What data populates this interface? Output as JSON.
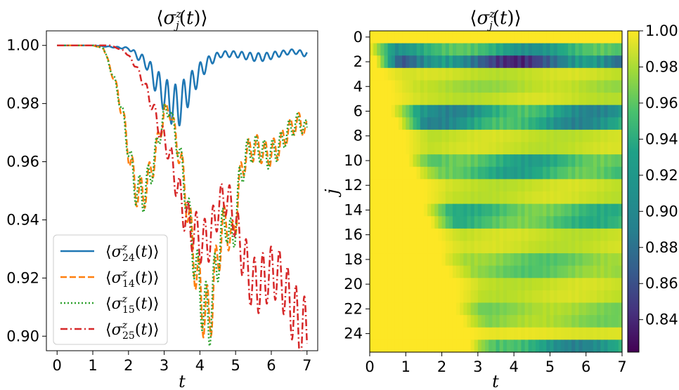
{
  "chart_data": [
    {
      "type": "line",
      "title": "⟨σⱼᶻ(t)⟩",
      "xlabel": "t",
      "ylabel": "",
      "xlim": [
        -0.3,
        7.3
      ],
      "ylim": [
        0.895,
        1.005
      ],
      "xticks": [
        "0",
        "1",
        "2",
        "3",
        "4",
        "5",
        "6",
        "7"
      ],
      "yticks": [
        "0.90",
        "0.92",
        "0.94",
        "0.96",
        "0.98",
        "1.00"
      ],
      "legend_placement": "lower-left",
      "series": [
        {
          "name": "⟨σ₂₄ᶻ(t)⟩",
          "color": "#1f77b4",
          "style": "solid",
          "points": [
            [
              0,
              1.0
            ],
            [
              1.0,
              1.0
            ],
            [
              2.0,
              0.999
            ],
            [
              2.5,
              0.994
            ],
            [
              2.8,
              0.987
            ],
            [
              3.0,
              0.983
            ],
            [
              3.2,
              0.98
            ],
            [
              3.4,
              0.979
            ],
            [
              3.6,
              0.983
            ],
            [
              3.8,
              0.987
            ],
            [
              4.0,
              0.991
            ],
            [
              4.3,
              0.995
            ],
            [
              4.6,
              0.997
            ],
            [
              5.0,
              0.997
            ],
            [
              5.5,
              0.996
            ],
            [
              5.8,
              0.996
            ],
            [
              6.2,
              0.997
            ],
            [
              6.6,
              0.998
            ],
            [
              7.0,
              0.997
            ]
          ]
        },
        {
          "name": "⟨σ₁₄ᶻ(t)⟩",
          "color": "#ff7f0e",
          "style": "dashed",
          "points": [
            [
              0,
              1.0
            ],
            [
              1.0,
              1.0
            ],
            [
              1.3,
              0.999
            ],
            [
              1.5,
              0.992
            ],
            [
              1.7,
              0.984
            ],
            [
              1.9,
              0.972
            ],
            [
              2.05,
              0.96
            ],
            [
              2.2,
              0.951
            ],
            [
              2.4,
              0.948
            ],
            [
              2.6,
              0.955
            ],
            [
              2.8,
              0.965
            ],
            [
              3.0,
              0.977
            ],
            [
              3.15,
              0.978
            ],
            [
              3.3,
              0.97
            ],
            [
              3.5,
              0.958
            ],
            [
              3.7,
              0.94
            ],
            [
              3.9,
              0.922
            ],
            [
              4.1,
              0.91
            ],
            [
              4.25,
              0.905
            ],
            [
              4.4,
              0.918
            ],
            [
              4.6,
              0.935
            ],
            [
              4.75,
              0.94
            ],
            [
              4.9,
              0.93
            ],
            [
              5.1,
              0.952
            ],
            [
              5.3,
              0.963
            ],
            [
              5.6,
              0.965
            ],
            [
              5.9,
              0.962
            ],
            [
              6.2,
              0.965
            ],
            [
              6.5,
              0.971
            ],
            [
              6.8,
              0.974
            ],
            [
              7.0,
              0.97
            ]
          ]
        },
        {
          "name": "⟨σ₁₅ᶻ(t)⟩",
          "color": "#2ca02c",
          "style": "dotted",
          "points": [
            [
              0,
              1.0
            ],
            [
              1.0,
              1.0
            ],
            [
              1.3,
              0.999
            ],
            [
              1.5,
              0.992
            ],
            [
              1.7,
              0.984
            ],
            [
              1.9,
              0.972
            ],
            [
              2.05,
              0.96
            ],
            [
              2.2,
              0.951
            ],
            [
              2.4,
              0.948
            ],
            [
              2.6,
              0.955
            ],
            [
              2.8,
              0.965
            ],
            [
              3.0,
              0.977
            ],
            [
              3.15,
              0.978
            ],
            [
              3.3,
              0.97
            ],
            [
              3.5,
              0.958
            ],
            [
              3.7,
              0.94
            ],
            [
              3.9,
              0.922
            ],
            [
              4.1,
              0.91
            ],
            [
              4.25,
              0.905
            ],
            [
              4.4,
              0.918
            ],
            [
              4.6,
              0.935
            ],
            [
              4.75,
              0.94
            ],
            [
              4.9,
              0.93
            ],
            [
              5.1,
              0.952
            ],
            [
              5.3,
              0.963
            ],
            [
              5.6,
              0.965
            ],
            [
              5.9,
              0.962
            ],
            [
              6.2,
              0.965
            ],
            [
              6.5,
              0.971
            ],
            [
              6.8,
              0.974
            ],
            [
              7.0,
              0.97
            ]
          ]
        },
        {
          "name": "⟨σ₂₅ᶻ(t)⟩",
          "color": "#d62728",
          "style": "dashdot",
          "points": [
            [
              0,
              1.0
            ],
            [
              1.5,
              1.0
            ],
            [
              1.9,
              0.998
            ],
            [
              2.2,
              0.993
            ],
            [
              2.5,
              0.985
            ],
            [
              2.7,
              0.978
            ],
            [
              2.9,
              0.97
            ],
            [
              3.1,
              0.965
            ],
            [
              3.3,
              0.955
            ],
            [
              3.5,
              0.945
            ],
            [
              3.7,
              0.938
            ],
            [
              3.9,
              0.935
            ],
            [
              4.1,
              0.932
            ],
            [
              4.3,
              0.934
            ],
            [
              4.5,
              0.944
            ],
            [
              4.7,
              0.948
            ],
            [
              4.9,
              0.944
            ],
            [
              5.1,
              0.933
            ],
            [
              5.3,
              0.924
            ],
            [
              5.5,
              0.917
            ],
            [
              5.7,
              0.918
            ],
            [
              5.9,
              0.921
            ],
            [
              6.1,
              0.922
            ],
            [
              6.3,
              0.919
            ],
            [
              6.5,
              0.912
            ],
            [
              6.7,
              0.906
            ],
            [
              6.85,
              0.901
            ],
            [
              7.0,
              0.903
            ]
          ]
        }
      ]
    },
    {
      "type": "heatmap",
      "title": "⟨σⱼᶻ(t)⟩",
      "xlabel": "t",
      "ylabel": "j",
      "xlim": [
        0,
        7
      ],
      "ylim": [
        25.5,
        -0.5
      ],
      "xticks": [
        "0",
        "1",
        "2",
        "3",
        "4",
        "5",
        "6",
        "7"
      ],
      "yticks": [
        "0",
        "2",
        "4",
        "6",
        "8",
        "10",
        "12",
        "14",
        "16",
        "18",
        "20",
        "22",
        "24"
      ],
      "colorbar": {
        "min": 0.822,
        "max": 1.0,
        "ticks": [
          "0.84",
          "0.86",
          "0.88",
          "0.90",
          "0.92",
          "0.94",
          "0.96",
          "0.98",
          "1.00"
        ],
        "colormap": "viridis"
      },
      "rows": [
        {
          "j": 0,
          "onset": 0.0,
          "depth": 0.0
        },
        {
          "j": 1,
          "onset": 0.0,
          "depth": 0.09
        },
        {
          "j": 2,
          "onset": 0.2,
          "depth": 0.16
        },
        {
          "j": 3,
          "onset": 0.4,
          "depth": 0.02
        },
        {
          "j": 4,
          "onset": 0.6,
          "depth": 0.03
        },
        {
          "j": 5,
          "onset": 0.6,
          "depth": 0.02
        },
        {
          "j": 6,
          "onset": 0.6,
          "depth": 0.1
        },
        {
          "j": 7,
          "onset": 0.8,
          "depth": 0.1
        },
        {
          "j": 8,
          "onset": 1.0,
          "depth": 0.02
        },
        {
          "j": 9,
          "onset": 1.0,
          "depth": 0.02
        },
        {
          "j": 10,
          "onset": 1.1,
          "depth": 0.08
        },
        {
          "j": 11,
          "onset": 1.3,
          "depth": 0.08
        },
        {
          "j": 12,
          "onset": 1.5,
          "depth": 0.02
        },
        {
          "j": 13,
          "onset": 1.5,
          "depth": 0.02
        },
        {
          "j": 14,
          "onset": 1.5,
          "depth": 0.07
        },
        {
          "j": 15,
          "onset": 1.7,
          "depth": 0.07
        },
        {
          "j": 16,
          "onset": 1.9,
          "depth": 0.02
        },
        {
          "j": 17,
          "onset": 2.0,
          "depth": 0.02
        },
        {
          "j": 18,
          "onset": 2.0,
          "depth": 0.05
        },
        {
          "j": 19,
          "onset": 2.2,
          "depth": 0.05
        },
        {
          "j": 20,
          "onset": 2.4,
          "depth": 0.02
        },
        {
          "j": 21,
          "onset": 2.4,
          "depth": 0.02
        },
        {
          "j": 22,
          "onset": 2.4,
          "depth": 0.04
        },
        {
          "j": 23,
          "onset": 2.6,
          "depth": 0.04
        },
        {
          "j": 24,
          "onset": 2.8,
          "depth": 0.01
        },
        {
          "j": 25,
          "onset": 2.8,
          "depth": 0.1
        }
      ]
    }
  ]
}
